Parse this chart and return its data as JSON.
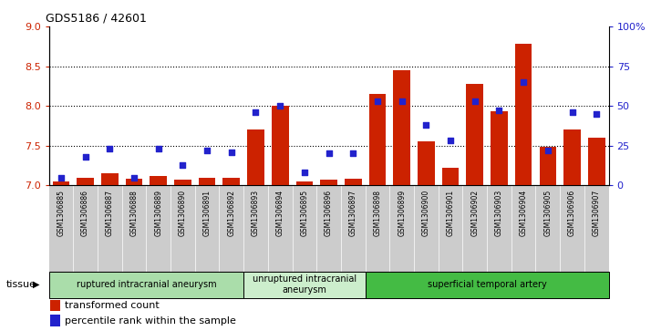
{
  "title": "GDS5186 / 42601",
  "samples": [
    "GSM1306885",
    "GSM1306886",
    "GSM1306887",
    "GSM1306888",
    "GSM1306889",
    "GSM1306890",
    "GSM1306891",
    "GSM1306892",
    "GSM1306893",
    "GSM1306894",
    "GSM1306895",
    "GSM1306896",
    "GSM1306897",
    "GSM1306898",
    "GSM1306899",
    "GSM1306900",
    "GSM1306901",
    "GSM1306902",
    "GSM1306903",
    "GSM1306904",
    "GSM1306905",
    "GSM1306906",
    "GSM1306907"
  ],
  "bar_values": [
    7.05,
    7.1,
    7.15,
    7.08,
    7.12,
    7.07,
    7.1,
    7.1,
    7.7,
    8.0,
    7.05,
    7.07,
    7.08,
    8.15,
    8.45,
    7.55,
    7.22,
    8.28,
    7.93,
    8.78,
    7.48,
    7.7,
    7.6
  ],
  "dot_values_pct": [
    5,
    18,
    23,
    5,
    23,
    13,
    22,
    21,
    46,
    50,
    8,
    20,
    20,
    53,
    53,
    38,
    28,
    53,
    47,
    65,
    22,
    46,
    45
  ],
  "ylim_left": [
    7.0,
    9.0
  ],
  "ylim_right": [
    0,
    100
  ],
  "yticks_left": [
    7.0,
    7.5,
    8.0,
    8.5,
    9.0
  ],
  "yticks_right": [
    0,
    25,
    50,
    75,
    100
  ],
  "bar_color": "#cc2200",
  "dot_color": "#2222cc",
  "plot_bg": "#ffffff",
  "col_bg": "#cccccc",
  "tissue_groups": [
    {
      "label": "ruptured intracranial aneurysm",
      "start": 0,
      "end": 8,
      "color": "#aaddaa"
    },
    {
      "label": "unruptured intracranial\naneurysm",
      "start": 8,
      "end": 13,
      "color": "#cceecc"
    },
    {
      "label": "superficial temporal artery",
      "start": 13,
      "end": 23,
      "color": "#44bb44"
    }
  ],
  "legend_bar_label": "transformed count",
  "legend_dot_label": "percentile rank within the sample",
  "tissue_label": "tissue",
  "ylabel_left_color": "#cc2200",
  "ylabel_right_color": "#2222cc",
  "gridline_values": [
    7.5,
    8.0,
    8.5
  ],
  "gridline_color": "#000000"
}
